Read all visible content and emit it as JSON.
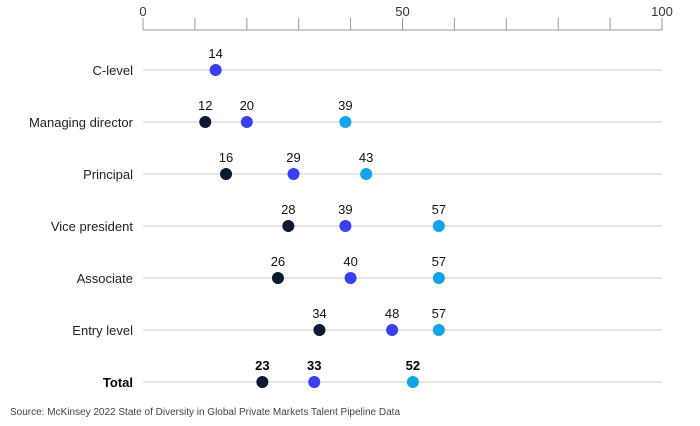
{
  "chart_data": {
    "type": "dot",
    "xlim": [
      0,
      100
    ],
    "x_ticks": [
      0,
      10,
      20,
      30,
      40,
      50,
      60,
      70,
      80,
      90,
      100
    ],
    "x_tick_labels": [
      {
        "value": 0,
        "label": "0"
      },
      {
        "value": 50,
        "label": "50"
      },
      {
        "value": 100,
        "label": "100"
      }
    ],
    "series": [
      {
        "name": "series-dark",
        "color": "#0b1a2e"
      },
      {
        "name": "series-blue",
        "color": "#3a3ff0"
      },
      {
        "name": "series-cyan",
        "color": "#12a3e8"
      }
    ],
    "rows": [
      {
        "category": "C-level",
        "bold": false,
        "points": [
          {
            "series": 1,
            "value": 14,
            "label": "14"
          }
        ]
      },
      {
        "category": "Managing director",
        "bold": false,
        "points": [
          {
            "series": 0,
            "value": 12,
            "label": "12"
          },
          {
            "series": 1,
            "value": 20,
            "label": "20"
          },
          {
            "series": 2,
            "value": 39,
            "label": "39"
          }
        ]
      },
      {
        "category": "Principal",
        "bold": false,
        "points": [
          {
            "series": 0,
            "value": 16,
            "label": "16"
          },
          {
            "series": 1,
            "value": 29,
            "label": "29"
          },
          {
            "series": 2,
            "value": 43,
            "label": "43"
          }
        ]
      },
      {
        "category": "Vice president",
        "bold": false,
        "points": [
          {
            "series": 0,
            "value": 28,
            "label": "28"
          },
          {
            "series": 1,
            "value": 39,
            "label": "39"
          },
          {
            "series": 2,
            "value": 57,
            "label": "57"
          }
        ]
      },
      {
        "category": "Associate",
        "bold": false,
        "points": [
          {
            "series": 0,
            "value": 26,
            "label": "26"
          },
          {
            "series": 1,
            "value": 40,
            "label": "40"
          },
          {
            "series": 2,
            "value": 57,
            "label": "57"
          }
        ]
      },
      {
        "category": "Entry level",
        "bold": false,
        "points": [
          {
            "series": 0,
            "value": 34,
            "label": "34"
          },
          {
            "series": 1,
            "value": 48,
            "label": "48"
          },
          {
            "series": 2,
            "value": 57,
            "label": "57"
          }
        ]
      },
      {
        "category": "Total",
        "bold": true,
        "points": [
          {
            "series": 0,
            "value": 23,
            "label": "23"
          },
          {
            "series": 1,
            "value": 33,
            "label": "33"
          },
          {
            "series": 2,
            "value": 52,
            "label": "52"
          }
        ]
      }
    ]
  },
  "source": "Source: McKinsey 2022 State of Diversity in Global Private Markets Talent Pipeline Data"
}
